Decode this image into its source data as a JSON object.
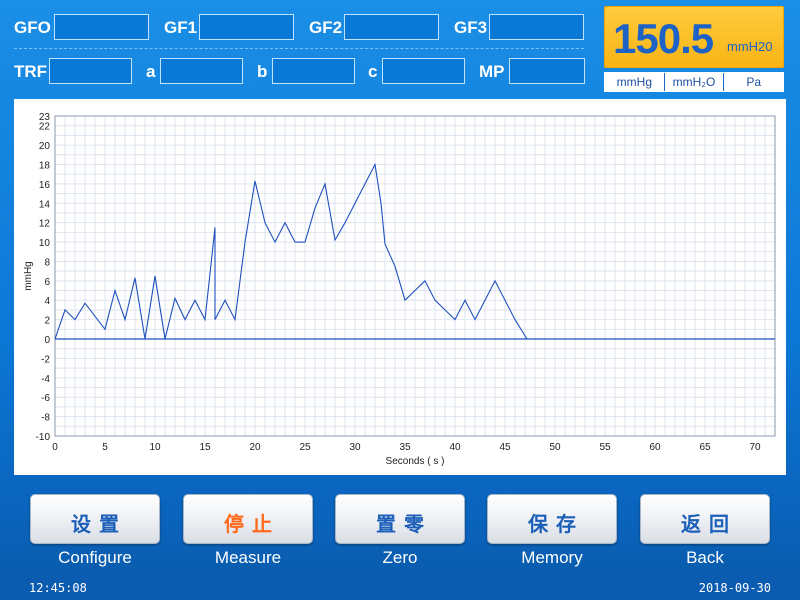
{
  "params": {
    "row1": [
      {
        "label": "GFO",
        "value": ""
      },
      {
        "label": "GF1",
        "value": ""
      },
      {
        "label": "GF2",
        "value": ""
      },
      {
        "label": "GF3",
        "value": ""
      }
    ],
    "row2": [
      {
        "label": "TRF",
        "value": ""
      },
      {
        "label": "a",
        "value": ""
      },
      {
        "label": "b",
        "value": ""
      },
      {
        "label": "c",
        "value": ""
      },
      {
        "label": "MP",
        "value": ""
      }
    ]
  },
  "reading": {
    "value": "150.5",
    "unit": "mmH20"
  },
  "units": {
    "options": [
      "mmHg",
      "mmH₂O",
      "Pa"
    ],
    "selected": "mmHg"
  },
  "chart_data": {
    "type": "line",
    "xlabel": "Seconds ( s )",
    "ylabel": "mmHg",
    "xlim": [
      0,
      72
    ],
    "ylim": [
      -10,
      23
    ],
    "x_ticks": [
      0,
      5,
      10,
      15,
      20,
      25,
      30,
      35,
      40,
      45,
      50,
      55,
      60,
      65,
      70
    ],
    "y_ticks": [
      -10,
      -8,
      -6,
      -4,
      -2,
      0,
      2,
      4,
      6,
      8,
      10,
      12,
      14,
      16,
      18,
      20,
      22,
      23
    ],
    "grid": true,
    "series": [
      {
        "color": "#1f4fbf",
        "x": [
          0,
          1,
          2,
          3,
          5,
          6,
          7,
          8,
          9,
          10,
          11,
          12,
          13,
          14,
          15,
          16,
          16,
          17,
          18,
          19,
          20,
          21,
          22,
          23,
          24,
          25,
          26,
          27,
          28,
          29,
          30,
          31,
          32,
          32.6,
          33,
          34,
          35,
          36,
          37,
          38,
          39,
          40,
          41,
          42,
          43,
          44,
          45,
          46,
          47.2
        ],
        "y": [
          0,
          3,
          2,
          3.7,
          1,
          5,
          2,
          6.3,
          0,
          6.5,
          0,
          4.2,
          2,
          4,
          2,
          11.5,
          2,
          4,
          2,
          10,
          16.3,
          12,
          10,
          12,
          10,
          10,
          13.5,
          16,
          10.2,
          12,
          14,
          16,
          18,
          14,
          9.8,
          7.5,
          4,
          5,
          6,
          4,
          3,
          2,
          4,
          2,
          4,
          6,
          4,
          2,
          0
        ]
      }
    ],
    "baseline": 0
  },
  "buttons": [
    {
      "cn": "设置",
      "caption": "Configure",
      "active": false
    },
    {
      "cn": "停止",
      "caption": "Measure",
      "active": true
    },
    {
      "cn": "置零",
      "caption": "Zero",
      "active": false
    },
    {
      "cn": "保存",
      "caption": "Memory",
      "active": false
    },
    {
      "cn": "返回",
      "caption": "Back",
      "active": false
    }
  ],
  "status": {
    "time": "12:45:08",
    "date": "2018-09-30"
  },
  "colors": {
    "background": "#0c78d6",
    "reading_bg": "#f8b415",
    "reading_text": "#1c62c7",
    "active_button_text": "#ff6a1a",
    "plot_line": "#1f4fbf"
  }
}
